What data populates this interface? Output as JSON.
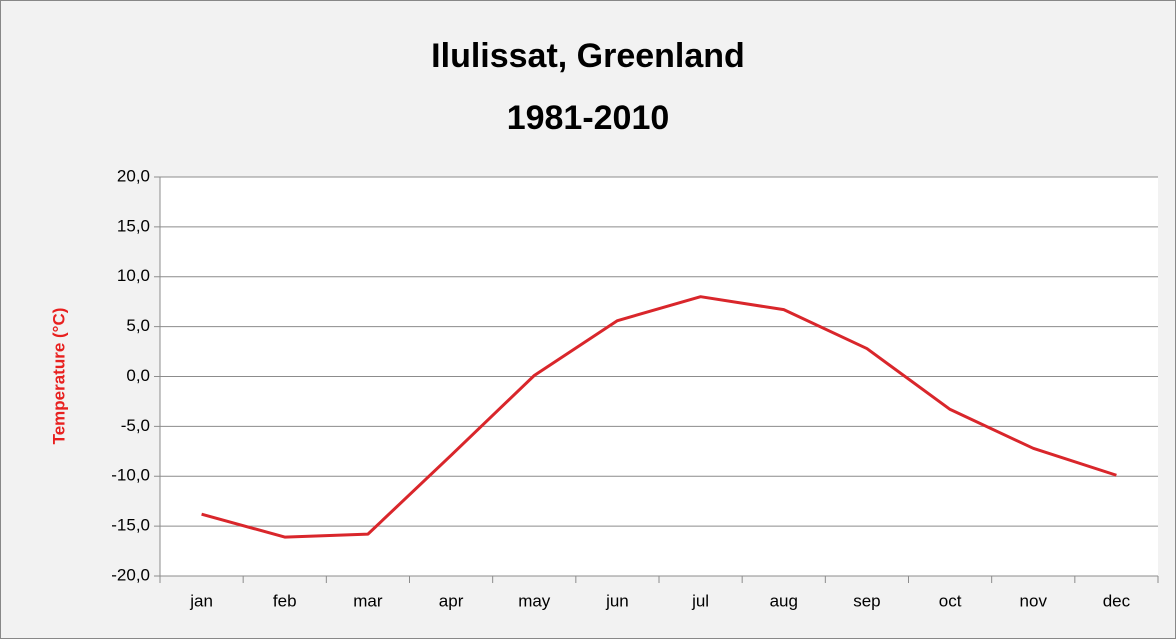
{
  "chart_data": {
    "type": "line",
    "title": "Ilulissat, Greenland",
    "subtitle": "1981-2010",
    "y_label": "Temperature (°C)",
    "categories": [
      "jan",
      "feb",
      "mar",
      "apr",
      "may",
      "jun",
      "jul",
      "aug",
      "sep",
      "oct",
      "nov",
      "dec"
    ],
    "series": [
      {
        "name": "Temperature",
        "color": "#d9262b",
        "values": [
          -13.8,
          -16.1,
          -15.8,
          -7.9,
          0.1,
          5.6,
          8.0,
          6.7,
          2.8,
          -3.3,
          -7.2,
          -9.9
        ]
      }
    ],
    "ylim": [
      -20,
      20
    ],
    "yticks": [
      {
        "value": -20,
        "label": "-20,0"
      },
      {
        "value": -15,
        "label": "-15,0"
      },
      {
        "value": -10,
        "label": "-10,0"
      },
      {
        "value": -5,
        "label": "-5,0"
      },
      {
        "value": 0,
        "label": "0,0"
      },
      {
        "value": 5,
        "label": "5,0"
      },
      {
        "value": 10,
        "label": "10,0"
      },
      {
        "value": 15,
        "label": "15,0"
      },
      {
        "value": 20,
        "label": "20,0"
      }
    ],
    "grid": true
  }
}
